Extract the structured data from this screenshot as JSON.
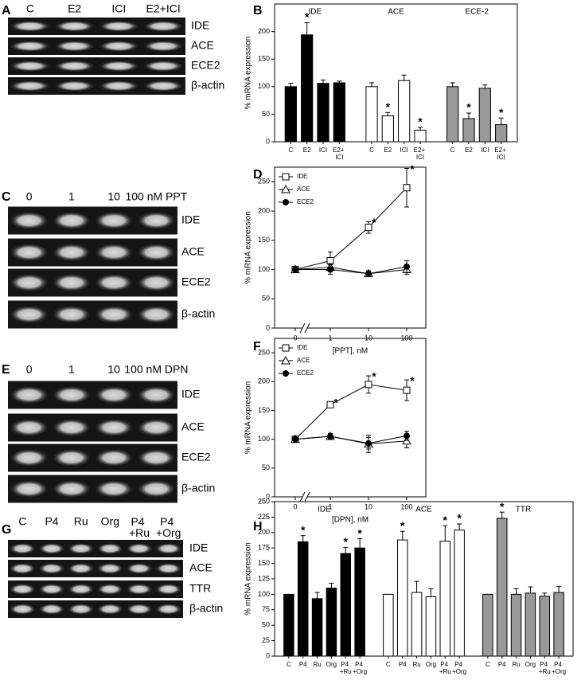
{
  "chart_data": [
    {
      "panel": "B",
      "type": "bar",
      "ylabel": "% mRNA expression",
      "ylim": [
        0,
        250
      ],
      "yticks": [
        0,
        50,
        100,
        150,
        200
      ],
      "categories": [
        "C",
        "E2",
        "ICI",
        "E2+ ICI"
      ],
      "series": [
        {
          "name": "IDE",
          "color": "#000000",
          "values": [
            100,
            194,
            106,
            107
          ],
          "errors": [
            6,
            22,
            6,
            3
          ],
          "significance": [
            null,
            "*",
            null,
            null
          ]
        },
        {
          "name": "ACE",
          "color": "#ffffff",
          "values": [
            100,
            47,
            111,
            21
          ],
          "errors": [
            7,
            6,
            10,
            5
          ],
          "significance": [
            null,
            "*",
            null,
            "*"
          ]
        },
        {
          "name": "ECE-2",
          "color": "#999999",
          "values": [
            100,
            42,
            97,
            31
          ],
          "errors": [
            7,
            10,
            6,
            12
          ],
          "significance": [
            null,
            "*",
            null,
            "*"
          ]
        }
      ]
    },
    {
      "panel": "D",
      "type": "line",
      "ylabel": "% mRNA expression",
      "xlabel": "[PPT], nM",
      "ylim": [
        0,
        275
      ],
      "yticks": [
        0,
        50,
        100,
        150,
        200,
        250
      ],
      "categories": [
        "0",
        "1",
        "10",
        "100"
      ],
      "series": [
        {
          "name": "IDE",
          "marker": "open-square",
          "values": [
            100,
            115,
            172,
            240
          ],
          "errors": [
            3,
            15,
            10,
            33
          ],
          "significance": [
            null,
            null,
            "*",
            "*"
          ]
        },
        {
          "name": "ACE",
          "marker": "open-triangle",
          "values": [
            100,
            104,
            93,
            100
          ],
          "errors": [
            3,
            6,
            5,
            8
          ],
          "significance": [
            null,
            null,
            null,
            null
          ]
        },
        {
          "name": "ECE2",
          "marker": "filled-circle",
          "values": [
            100,
            100,
            93,
            105
          ],
          "errors": [
            3,
            8,
            5,
            10
          ],
          "significance": [
            null,
            null,
            null,
            null
          ]
        }
      ]
    },
    {
      "panel": "F",
      "type": "line",
      "ylabel": "% mRNA expression",
      "xlabel": "[DPN], nM",
      "ylim": [
        0,
        275
      ],
      "yticks": [
        0,
        50,
        100,
        150,
        200,
        250
      ],
      "categories": [
        "0",
        "1",
        "10",
        "100"
      ],
      "series": [
        {
          "name": "IDE",
          "marker": "open-square",
          "values": [
            100,
            160,
            195,
            185
          ],
          "errors": [
            3,
            5,
            15,
            18
          ],
          "significance": [
            null,
            "*",
            "*",
            "*"
          ]
        },
        {
          "name": "ACE",
          "marker": "open-triangle",
          "values": [
            100,
            105,
            92,
            97
          ],
          "errors": [
            3,
            5,
            15,
            12
          ],
          "significance": [
            null,
            null,
            null,
            null
          ]
        },
        {
          "name": "ECE2",
          "marker": "filled-circle",
          "values": [
            100,
            105,
            93,
            106
          ],
          "errors": [
            3,
            5,
            10,
            8
          ],
          "significance": [
            null,
            null,
            null,
            null
          ]
        }
      ]
    },
    {
      "panel": "H",
      "type": "bar",
      "ylabel": "% mRNA expression",
      "ylim": [
        0,
        250
      ],
      "yticks": [
        0,
        25,
        50,
        75,
        100,
        125,
        150,
        175,
        200,
        225,
        250
      ],
      "categories": [
        "C",
        "P4",
        "Ru",
        "Org",
        "P4 +Ru",
        "P4 +Org"
      ],
      "series": [
        {
          "name": "IDE",
          "color": "#000000",
          "values": [
            100,
            185,
            93,
            110,
            166,
            175
          ],
          "errors": [
            0,
            10,
            10,
            8,
            10,
            15
          ],
          "significance": [
            null,
            "*",
            null,
            null,
            "*",
            "*"
          ]
        },
        {
          "name": "ACE",
          "color": "#ffffff",
          "values": [
            100,
            188,
            103,
            96,
            186,
            204
          ],
          "errors": [
            0,
            14,
            18,
            13,
            25,
            10
          ],
          "significance": [
            null,
            "*",
            null,
            null,
            "*",
            "*"
          ]
        },
        {
          "name": "TTR",
          "color": "#999999",
          "values": [
            100,
            223,
            100,
            102,
            97,
            103
          ],
          "errors": [
            0,
            10,
            9,
            10,
            5,
            10
          ],
          "significance": [
            null,
            "*",
            null,
            null,
            null,
            null
          ]
        }
      ]
    }
  ],
  "gels": [
    {
      "panel": "A",
      "lanes": [
        "C",
        "E2",
        "ICI",
        "E2+ICI"
      ],
      "bands": [
        "IDE",
        "ACE",
        "ECE2",
        "β-actin"
      ]
    },
    {
      "panel": "C",
      "lanes": [
        "0",
        "1",
        "10",
        "100 nM PPT"
      ],
      "bands": [
        "IDE",
        "ACE",
        "ECE2",
        "β-actin"
      ]
    },
    {
      "panel": "E",
      "lanes": [
        "0",
        "1",
        "10",
        "100 nM DPN"
      ],
      "bands": [
        "IDE",
        "ACE",
        "ECE2",
        "β-actin"
      ]
    },
    {
      "panel": "G",
      "lanes": [
        "C",
        "P4",
        "Ru",
        "Org",
        "P4 +Ru",
        "P4 +Org"
      ],
      "bands": [
        "IDE",
        "ACE",
        "TTR",
        "β-actin"
      ]
    }
  ]
}
